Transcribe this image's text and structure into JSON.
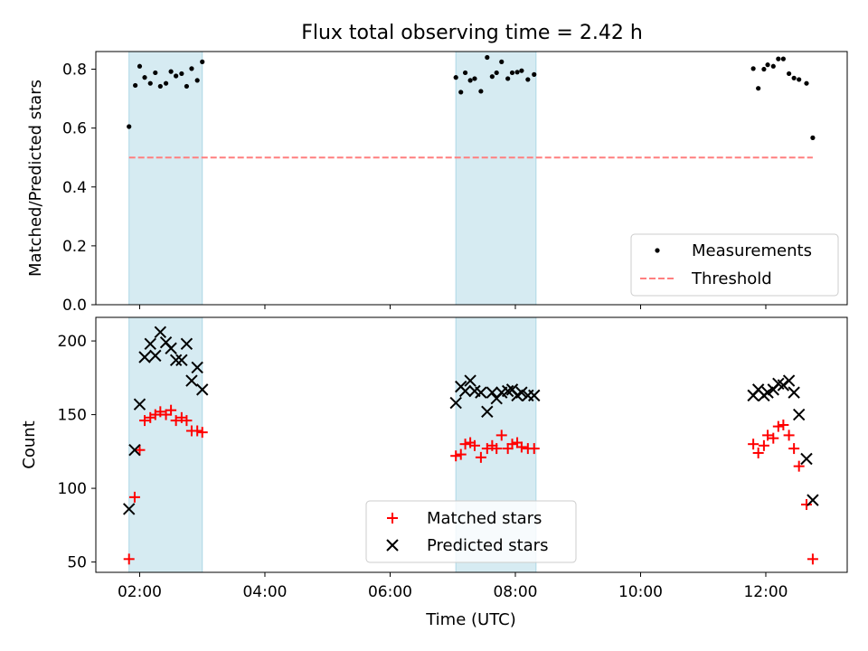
{
  "chart_data": [
    {
      "type": "scatter",
      "title": "Flux total observing time = 2.42 h",
      "xlabel": "",
      "ylabel": "Matched/Predicted stars",
      "xlim_hours": [
        1.3,
        13.3
      ],
      "ylim": [
        0,
        0.86
      ],
      "yticks": [
        0.0,
        0.2,
        0.4,
        0.6,
        0.8
      ],
      "ytick_labels": [
        "0.0",
        "0.2",
        "0.4",
        "0.6",
        "0.8"
      ],
      "legend_position": "lower-right",
      "shaded_intervals_hours": [
        [
          1.83,
          3.0
        ],
        [
          7.05,
          8.33
        ]
      ],
      "series": [
        {
          "name": "Measurements",
          "color": "#000000",
          "marker": "dot",
          "points": [
            [
              1.83,
              0.605
            ],
            [
              1.93,
              0.745
            ],
            [
              2.0,
              0.81
            ],
            [
              2.08,
              0.772
            ],
            [
              2.17,
              0.752
            ],
            [
              2.25,
              0.788
            ],
            [
              2.33,
              0.742
            ],
            [
              2.42,
              0.752
            ],
            [
              2.5,
              0.792
            ],
            [
              2.58,
              0.777
            ],
            [
              2.67,
              0.785
            ],
            [
              2.75,
              0.742
            ],
            [
              2.83,
              0.802
            ],
            [
              2.92,
              0.762
            ],
            [
              3.0,
              0.825
            ],
            [
              7.05,
              0.772
            ],
            [
              7.13,
              0.722
            ],
            [
              7.2,
              0.788
            ],
            [
              7.28,
              0.762
            ],
            [
              7.35,
              0.768
            ],
            [
              7.45,
              0.725
            ],
            [
              7.55,
              0.84
            ],
            [
              7.63,
              0.775
            ],
            [
              7.7,
              0.788
            ],
            [
              7.78,
              0.825
            ],
            [
              7.88,
              0.768
            ],
            [
              7.95,
              0.788
            ],
            [
              8.03,
              0.79
            ],
            [
              8.1,
              0.795
            ],
            [
              8.2,
              0.765
            ],
            [
              8.3,
              0.782
            ],
            [
              11.8,
              0.802
            ],
            [
              11.88,
              0.735
            ],
            [
              11.97,
              0.8
            ],
            [
              12.03,
              0.815
            ],
            [
              12.12,
              0.81
            ],
            [
              12.2,
              0.835
            ],
            [
              12.28,
              0.835
            ],
            [
              12.37,
              0.785
            ],
            [
              12.45,
              0.77
            ],
            [
              12.53,
              0.765
            ],
            [
              12.65,
              0.752
            ],
            [
              12.75,
              0.567
            ]
          ]
        },
        {
          "name": "Threshold",
          "color": "#ff7f7f",
          "style": "dashed",
          "x": [
            1.83,
            12.75
          ],
          "y": [
            0.5,
            0.5
          ]
        }
      ]
    },
    {
      "type": "scatter",
      "title": "",
      "xlabel": "Time (UTC)",
      "ylabel": "Count",
      "xlim_hours": [
        1.3,
        13.3
      ],
      "ylim": [
        43,
        216
      ],
      "yticks": [
        50,
        100,
        150,
        200
      ],
      "ytick_labels": [
        "50",
        "100",
        "150",
        "200"
      ],
      "xticks_hours": [
        2,
        4,
        6,
        8,
        10,
        12
      ],
      "xtick_labels": [
        "02:00",
        "04:00",
        "06:00",
        "08:00",
        "10:00",
        "12:00"
      ],
      "legend_position": "lower-center",
      "shaded_intervals_hours": [
        [
          1.83,
          3.0
        ],
        [
          7.05,
          8.33
        ]
      ],
      "series": [
        {
          "name": "Matched stars",
          "color": "#ff0000",
          "marker": "plus",
          "points": [
            [
              1.83,
              52
            ],
            [
              1.92,
              94
            ],
            [
              2.0,
              126
            ],
            [
              2.08,
              146
            ],
            [
              2.17,
              148
            ],
            [
              2.25,
              150
            ],
            [
              2.33,
              152
            ],
            [
              2.42,
              150
            ],
            [
              2.5,
              153
            ],
            [
              2.58,
              146
            ],
            [
              2.67,
              148
            ],
            [
              2.75,
              146
            ],
            [
              2.83,
              139
            ],
            [
              2.92,
              139
            ],
            [
              3.0,
              138
            ],
            [
              7.05,
              122
            ],
            [
              7.13,
              123
            ],
            [
              7.2,
              130
            ],
            [
              7.28,
              131
            ],
            [
              7.35,
              129
            ],
            [
              7.45,
              121
            ],
            [
              7.55,
              127
            ],
            [
              7.63,
              129
            ],
            [
              7.7,
              127
            ],
            [
              7.78,
              136
            ],
            [
              7.88,
              127
            ],
            [
              7.95,
              130
            ],
            [
              8.03,
              131
            ],
            [
              8.1,
              128
            ],
            [
              8.2,
              127
            ],
            [
              8.3,
              127
            ],
            [
              11.8,
              130
            ],
            [
              11.88,
              124
            ],
            [
              11.97,
              129
            ],
            [
              12.03,
              136
            ],
            [
              12.12,
              134
            ],
            [
              12.2,
              142
            ],
            [
              12.28,
              143
            ],
            [
              12.37,
              136
            ],
            [
              12.45,
              127
            ],
            [
              12.53,
              115
            ],
            [
              12.65,
              89
            ],
            [
              12.75,
              52
            ]
          ]
        },
        {
          "name": "Predicted stars",
          "color": "#000000",
          "marker": "x",
          "points": [
            [
              1.83,
              86
            ],
            [
              1.92,
              126
            ],
            [
              2.0,
              157
            ],
            [
              2.08,
              189
            ],
            [
              2.17,
              198
            ],
            [
              2.25,
              190
            ],
            [
              2.33,
              206
            ],
            [
              2.42,
              199
            ],
            [
              2.5,
              195
            ],
            [
              2.58,
              187
            ],
            [
              2.67,
              187
            ],
            [
              2.75,
              198
            ],
            [
              2.83,
              173
            ],
            [
              2.92,
              182
            ],
            [
              3.0,
              167
            ],
            [
              7.05,
              158
            ],
            [
              7.13,
              169
            ],
            [
              7.2,
              166
            ],
            [
              7.28,
              173
            ],
            [
              7.35,
              166
            ],
            [
              7.45,
              165
            ],
            [
              7.55,
              152
            ],
            [
              7.63,
              165
            ],
            [
              7.7,
              161
            ],
            [
              7.78,
              165
            ],
            [
              7.88,
              166
            ],
            [
              7.95,
              167
            ],
            [
              8.03,
              163
            ],
            [
              8.1,
              165
            ],
            [
              8.2,
              163
            ],
            [
              8.3,
              163
            ],
            [
              11.8,
              163
            ],
            [
              11.88,
              167
            ],
            [
              11.97,
              163
            ],
            [
              12.03,
              165
            ],
            [
              12.12,
              167
            ],
            [
              12.2,
              171
            ],
            [
              12.28,
              170
            ],
            [
              12.37,
              173
            ],
            [
              12.45,
              165
            ],
            [
              12.53,
              150
            ],
            [
              12.65,
              120
            ],
            [
              12.75,
              92
            ]
          ]
        }
      ]
    }
  ]
}
